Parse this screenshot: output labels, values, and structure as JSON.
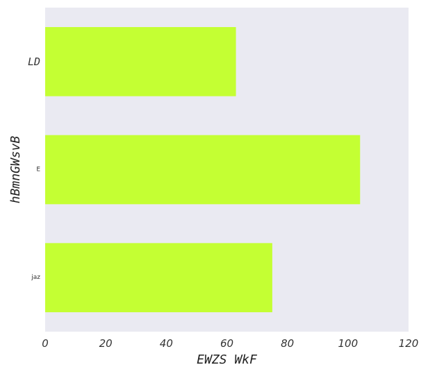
{
  "chart_data": {
    "type": "bar",
    "orientation": "horizontal",
    "title": "",
    "xlabel": "EWZS WkF",
    "ylabel": "hBmnGWsvB",
    "categories": [
      "LD",
      "E",
      "jaz"
    ],
    "values": [
      63,
      104,
      75
    ],
    "xlim": [
      0,
      120
    ],
    "xticks": [
      0,
      20,
      40,
      60,
      80,
      100,
      120
    ],
    "grid": false,
    "legend": "none",
    "colors": {
      "bar": "#c4ff33",
      "plot_background": "#eaeaf2",
      "page_background": "#ffffff"
    }
  }
}
